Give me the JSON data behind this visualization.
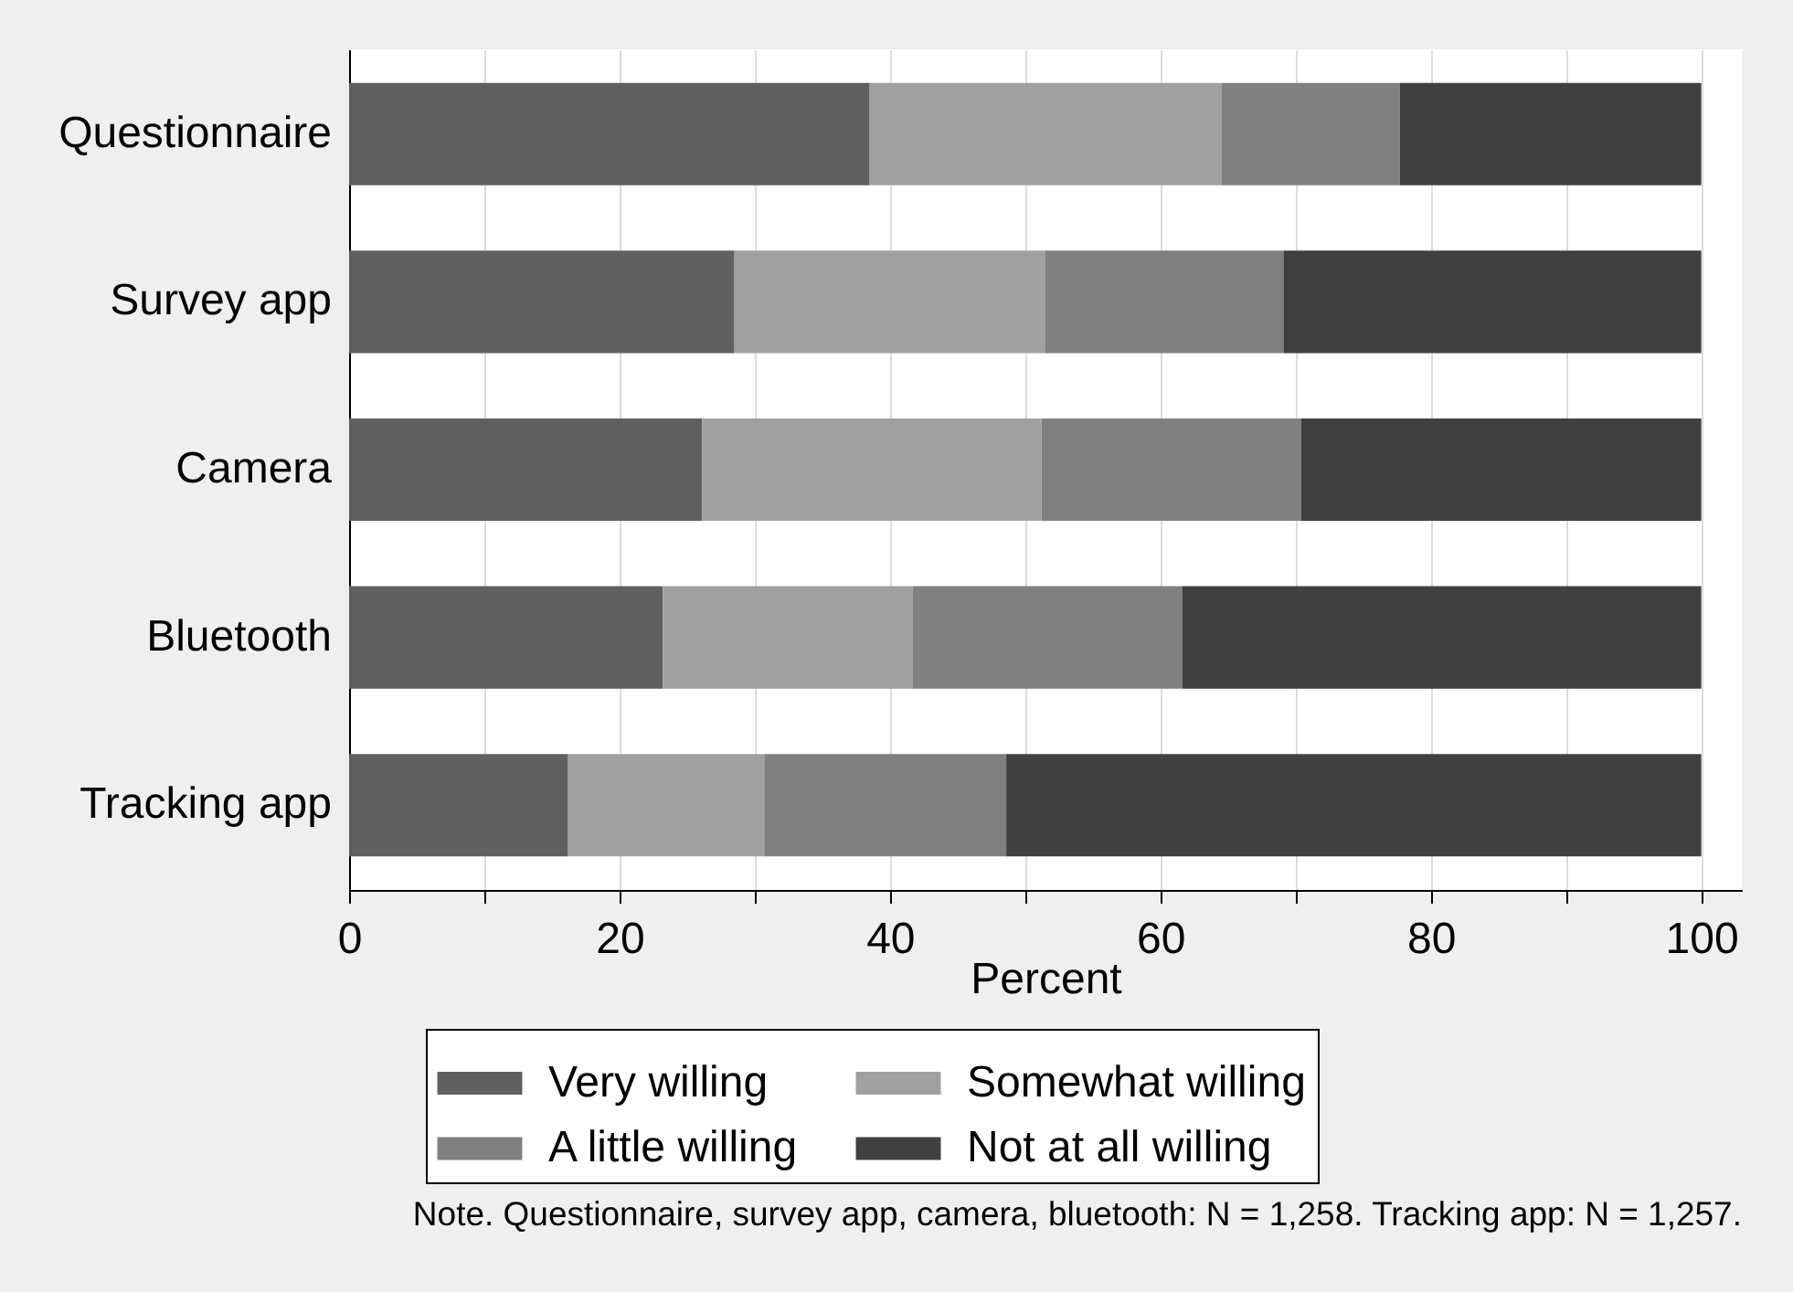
{
  "chart_data": {
    "type": "bar",
    "orientation": "horizontal",
    "stacked": true,
    "xlabel": "Percent",
    "categories": [
      "Questionnaire",
      "Survey app",
      "Camera",
      "Bluetooth",
      "Tracking app"
    ],
    "series": [
      {
        "name": "Very willing",
        "color": "#606060",
        "values": [
          38.5,
          28.5,
          26.1,
          23.2,
          16.2
        ]
      },
      {
        "name": "Somewhat willing",
        "color": "#a0a0a0",
        "values": [
          26.0,
          23.0,
          25.1,
          18.5,
          14.5
        ]
      },
      {
        "name": "A little willing",
        "color": "#808080",
        "values": [
          13.2,
          17.6,
          19.2,
          19.9,
          17.9
        ]
      },
      {
        "name": "Not at all willing",
        "color": "#404040",
        "values": [
          22.3,
          30.9,
          29.6,
          38.4,
          51.4
        ]
      }
    ],
    "xlim": [
      0,
      103
    ],
    "xticks": [
      0,
      {
        "value": 10,
        "label": null
      },
      20,
      {
        "value": 30,
        "label": null
      },
      40,
      {
        "value": 50,
        "label": null
      },
      60,
      {
        "value": 70,
        "label": null
      },
      80,
      {
        "value": 90,
        "label": null
      },
      100
    ],
    "grid": "x",
    "legend": "bottom",
    "annotations": [
      "Note. Questionnaire, survey app, camera, bluetooth: N = 1,258. Tracking app: N = 1,257."
    ]
  }
}
